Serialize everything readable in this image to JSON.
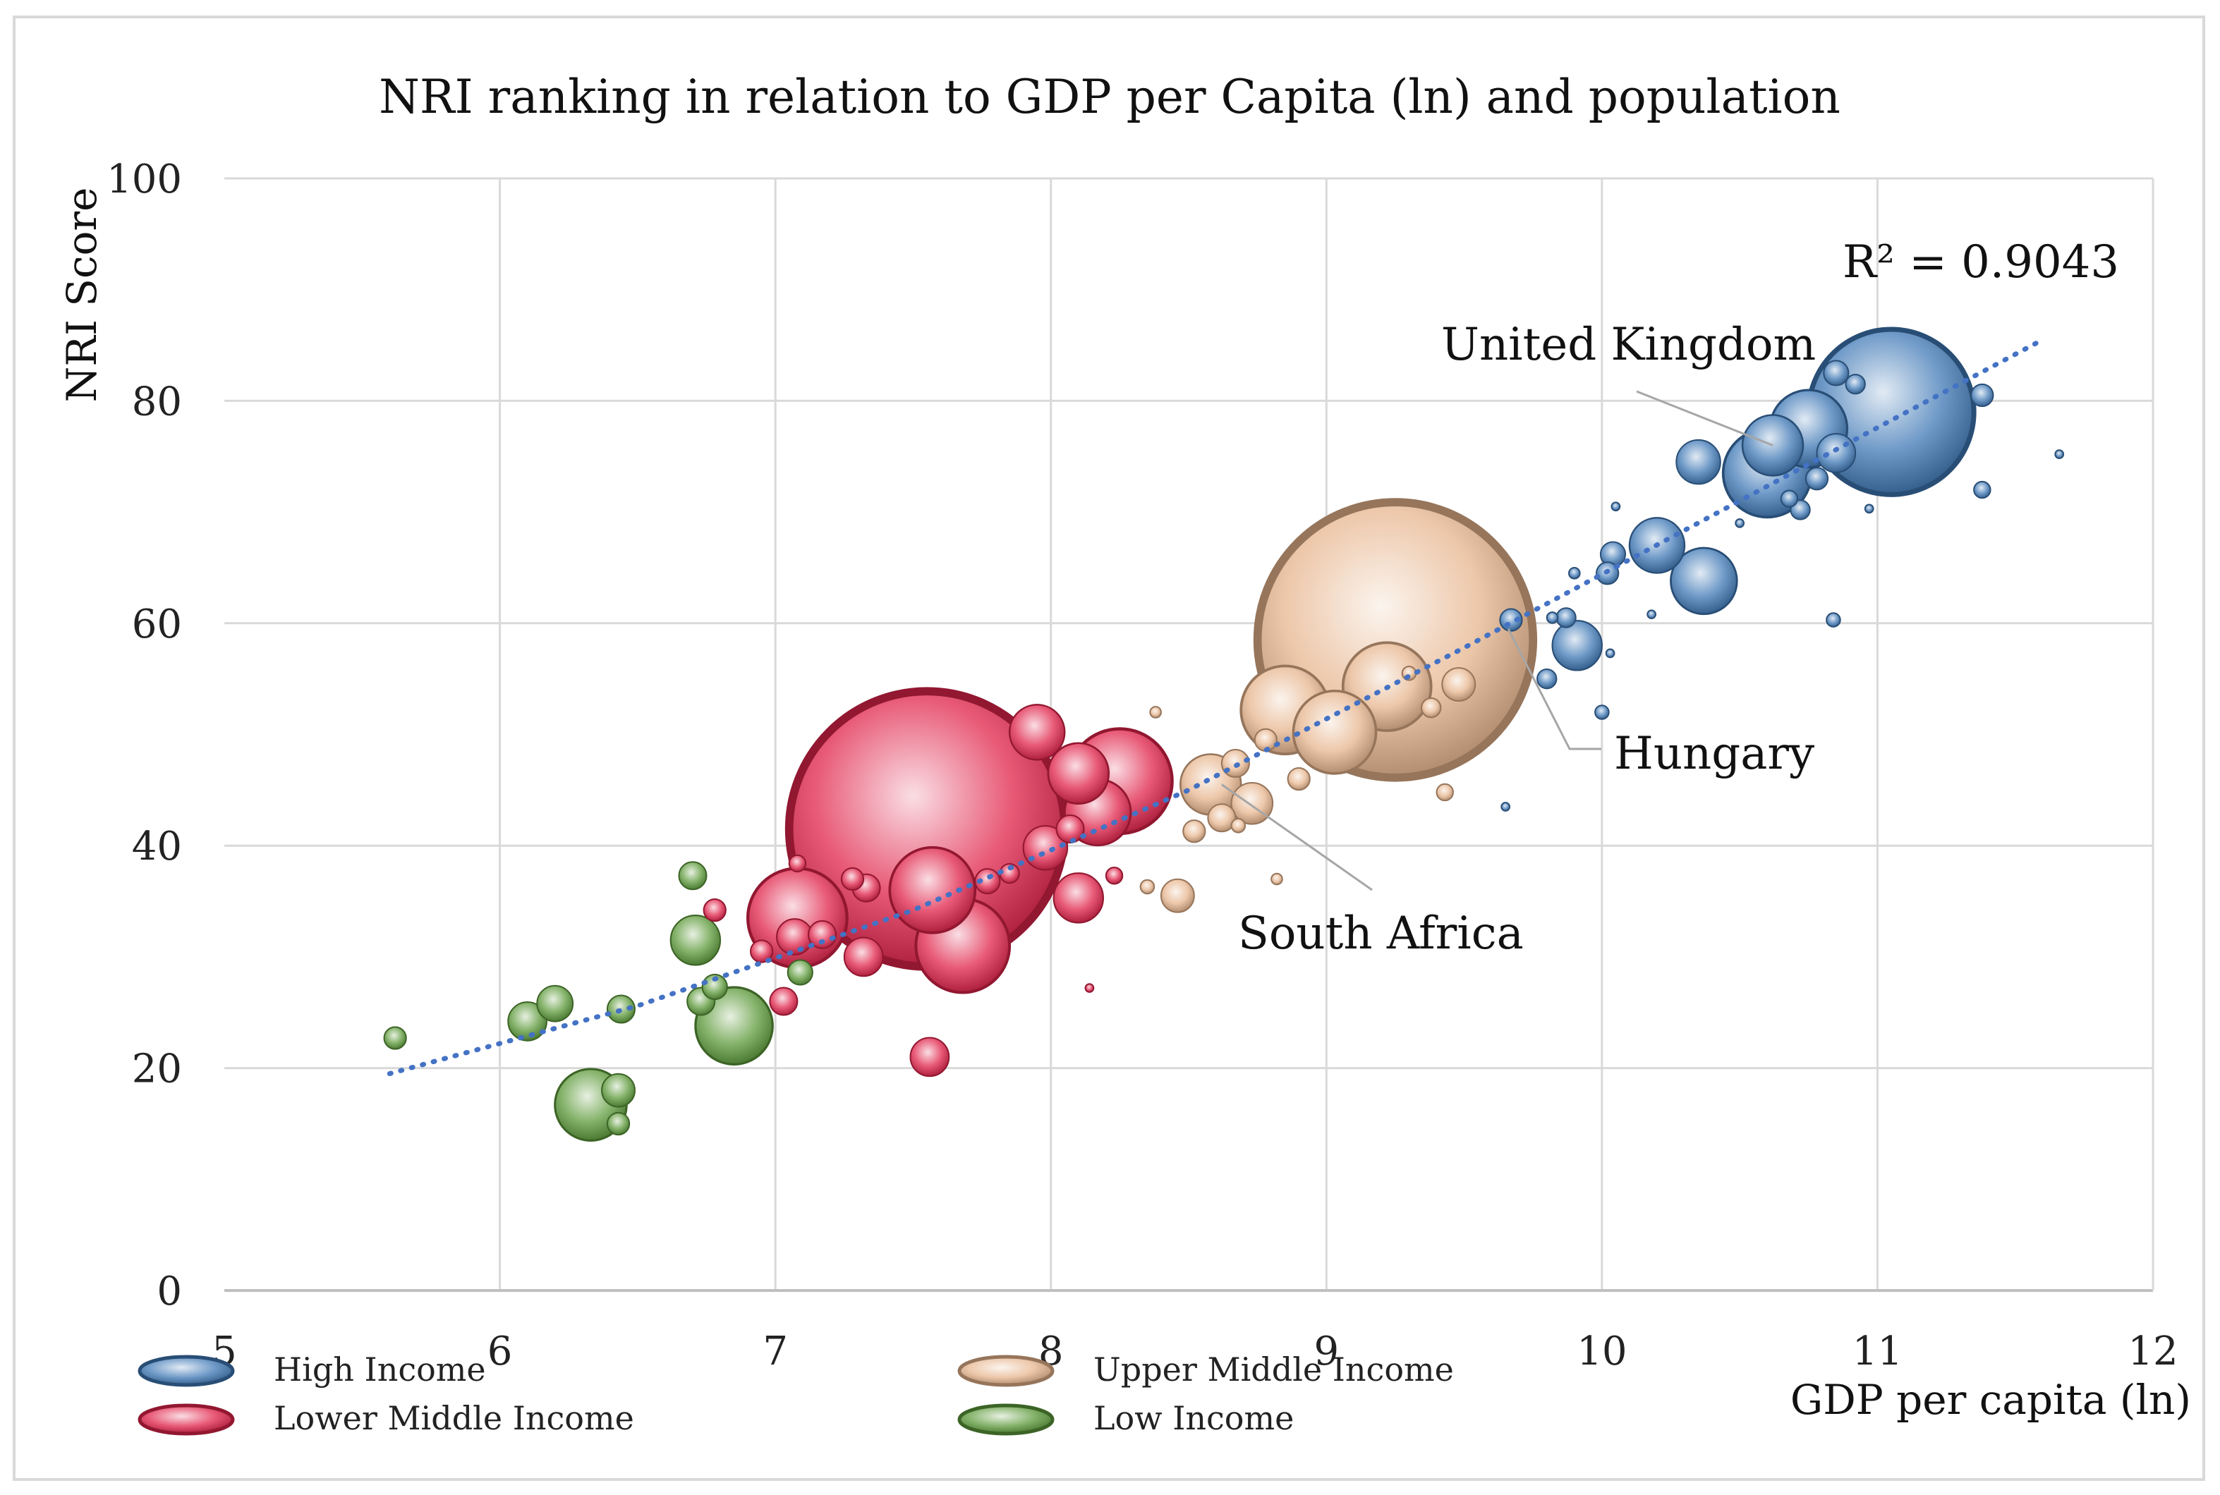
{
  "chart_data": {
    "type": "scatter",
    "title": "NRI ranking in relation to GDP per Capita (ln) and population",
    "xlabel": "GDP per capita (ln)",
    "ylabel": "NRI Score",
    "xlim": [
      5,
      12
    ],
    "ylim": [
      0,
      100
    ],
    "x_ticks": [
      "5",
      "6",
      "7",
      "8",
      "9",
      "10",
      "11",
      "12"
    ],
    "y_ticks": [
      "0",
      "20",
      "40",
      "60",
      "80",
      "100"
    ],
    "grid": true,
    "trendline": {
      "type": "polynomial",
      "x_range": [
        5.6,
        11.6
      ],
      "points": [
        [
          5.6,
          19.5
        ],
        [
          6.5,
          25.6
        ],
        [
          7.5,
          34.2
        ],
        [
          8.5,
          45.0
        ],
        [
          9.5,
          57.8
        ],
        [
          10.5,
          71.0
        ],
        [
          11.6,
          85.5
        ]
      ],
      "r2_label": "R² = 0.9043"
    },
    "colors": {
      "High Income": "#3f78b5",
      "Upper Middle Income": "#e7b48c",
      "Lower Middle Income": "#e0234a",
      "Low Income": "#5c9a3a"
    },
    "legend": {
      "placement": "bottom",
      "entries": [
        "High Income",
        "Upper Middle Income",
        "Lower Middle Income",
        "Low Income"
      ]
    },
    "annotations": [
      {
        "text": "United Kingdom",
        "point": [
          10.62,
          76
        ]
      },
      {
        "text": "Hungary",
        "point": [
          9.66,
          59.5
        ]
      },
      {
        "text": "South Africa",
        "point": [
          8.62,
          45.5
        ]
      }
    ],
    "series": [
      {
        "name": "High Income",
        "points": [
          [
            11.05,
            79,
            6
          ],
          [
            10.75,
            77.5,
            2.8
          ],
          [
            10.6,
            73.5,
            3.2
          ],
          [
            10.62,
            76,
            2.2
          ],
          [
            10.85,
            75.3,
            1.4
          ],
          [
            10.35,
            74.5,
            1.6
          ],
          [
            10.2,
            67,
            2.0
          ],
          [
            10.37,
            63.8,
            2.4
          ],
          [
            10.85,
            82.5,
            0.9
          ],
          [
            10.92,
            81.5,
            0.7
          ],
          [
            11.38,
            80.5,
            0.8
          ],
          [
            11.38,
            72,
            0.6
          ],
          [
            10.78,
            73,
            0.8
          ],
          [
            10.72,
            70.2,
            0.7
          ],
          [
            10.68,
            71.2,
            0.6
          ],
          [
            10.04,
            66.2,
            0.9
          ],
          [
            10.02,
            64.5,
            0.8
          ],
          [
            9.91,
            58,
            1.8
          ],
          [
            9.87,
            60.5,
            0.7
          ],
          [
            9.8,
            55,
            0.7
          ],
          [
            9.67,
            60.3,
            0.8
          ],
          [
            9.82,
            60.5,
            0.4
          ],
          [
            10.84,
            60.3,
            0.5
          ],
          [
            10.0,
            52,
            0.5
          ],
          [
            9.9,
            64.5,
            0.4
          ],
          [
            10.05,
            70.5,
            0.3
          ],
          [
            10.03,
            57.3,
            0.3
          ],
          [
            10.18,
            60.8,
            0.3
          ],
          [
            9.65,
            43.5,
            0.3
          ],
          [
            10.97,
            70.3,
            0.3
          ],
          [
            11.66,
            75.2,
            0.3
          ],
          [
            10.5,
            69,
            0.3
          ]
        ]
      },
      {
        "name": "Upper Middle Income",
        "points": [
          [
            9.25,
            58.5,
            10
          ],
          [
            9.22,
            54.3,
            3.2
          ],
          [
            8.85,
            52.2,
            3.2
          ],
          [
            9.03,
            50.2,
            3.0
          ],
          [
            8.58,
            45.5,
            2.2
          ],
          [
            8.73,
            43.8,
            1.5
          ],
          [
            8.67,
            47.4,
            1.0
          ],
          [
            8.46,
            35.5,
            1.2
          ],
          [
            8.62,
            42.5,
            1.0
          ],
          [
            9.48,
            54.5,
            1.2
          ],
          [
            8.9,
            46,
            0.8
          ],
          [
            8.78,
            49.5,
            0.8
          ],
          [
            9.38,
            52.4,
            0.7
          ],
          [
            9.43,
            44.8,
            0.6
          ],
          [
            8.52,
            41.3,
            0.8
          ],
          [
            8.35,
            36.3,
            0.5
          ],
          [
            8.82,
            37,
            0.4
          ],
          [
            8.68,
            41.8,
            0.5
          ],
          [
            8.38,
            52,
            0.4
          ],
          [
            9.3,
            55.5,
            0.5
          ]
        ]
      },
      {
        "name": "Lower Middle Income",
        "points": [
          [
            7.55,
            41.5,
            10
          ],
          [
            7.08,
            33.5,
            3.6
          ],
          [
            7.57,
            36,
            3.1
          ],
          [
            7.68,
            31,
            3.4
          ],
          [
            8.25,
            45.8,
            3.8
          ],
          [
            8.17,
            43,
            2.4
          ],
          [
            7.95,
            50.2,
            2.0
          ],
          [
            8.1,
            46.5,
            2.2
          ],
          [
            7.98,
            39.8,
            1.6
          ],
          [
            8.1,
            35.3,
            1.8
          ],
          [
            7.56,
            21,
            1.4
          ],
          [
            7.32,
            30,
            1.4
          ],
          [
            7.07,
            31.8,
            1.3
          ],
          [
            7.33,
            36.2,
            1.0
          ],
          [
            7.17,
            32,
            1.0
          ],
          [
            7.28,
            37,
            0.8
          ],
          [
            7.03,
            26,
            1.0
          ],
          [
            6.95,
            30.5,
            0.8
          ],
          [
            6.78,
            34.2,
            0.8
          ],
          [
            7.77,
            36.8,
            0.9
          ],
          [
            7.85,
            37.5,
            0.7
          ],
          [
            8.07,
            41.5,
            1.0
          ],
          [
            8.23,
            37.3,
            0.6
          ],
          [
            8.14,
            27.2,
            0.3
          ],
          [
            7.08,
            38.4,
            0.6
          ]
        ]
      },
      {
        "name": "Low Income",
        "points": [
          [
            6.85,
            23.8,
            2.8
          ],
          [
            6.33,
            16.7,
            2.6
          ],
          [
            6.71,
            31.5,
            1.8
          ],
          [
            6.1,
            24.2,
            1.4
          ],
          [
            6.2,
            25.8,
            1.3
          ],
          [
            6.43,
            18,
            1.2
          ],
          [
            6.44,
            25.3,
            1.0
          ],
          [
            6.7,
            37.3,
            1.0
          ],
          [
            6.73,
            26,
            1.0
          ],
          [
            6.78,
            27.3,
            0.9
          ],
          [
            5.62,
            22.7,
            0.8
          ],
          [
            6.43,
            15,
            0.8
          ],
          [
            7.09,
            28.6,
            0.9
          ]
        ]
      }
    ]
  }
}
